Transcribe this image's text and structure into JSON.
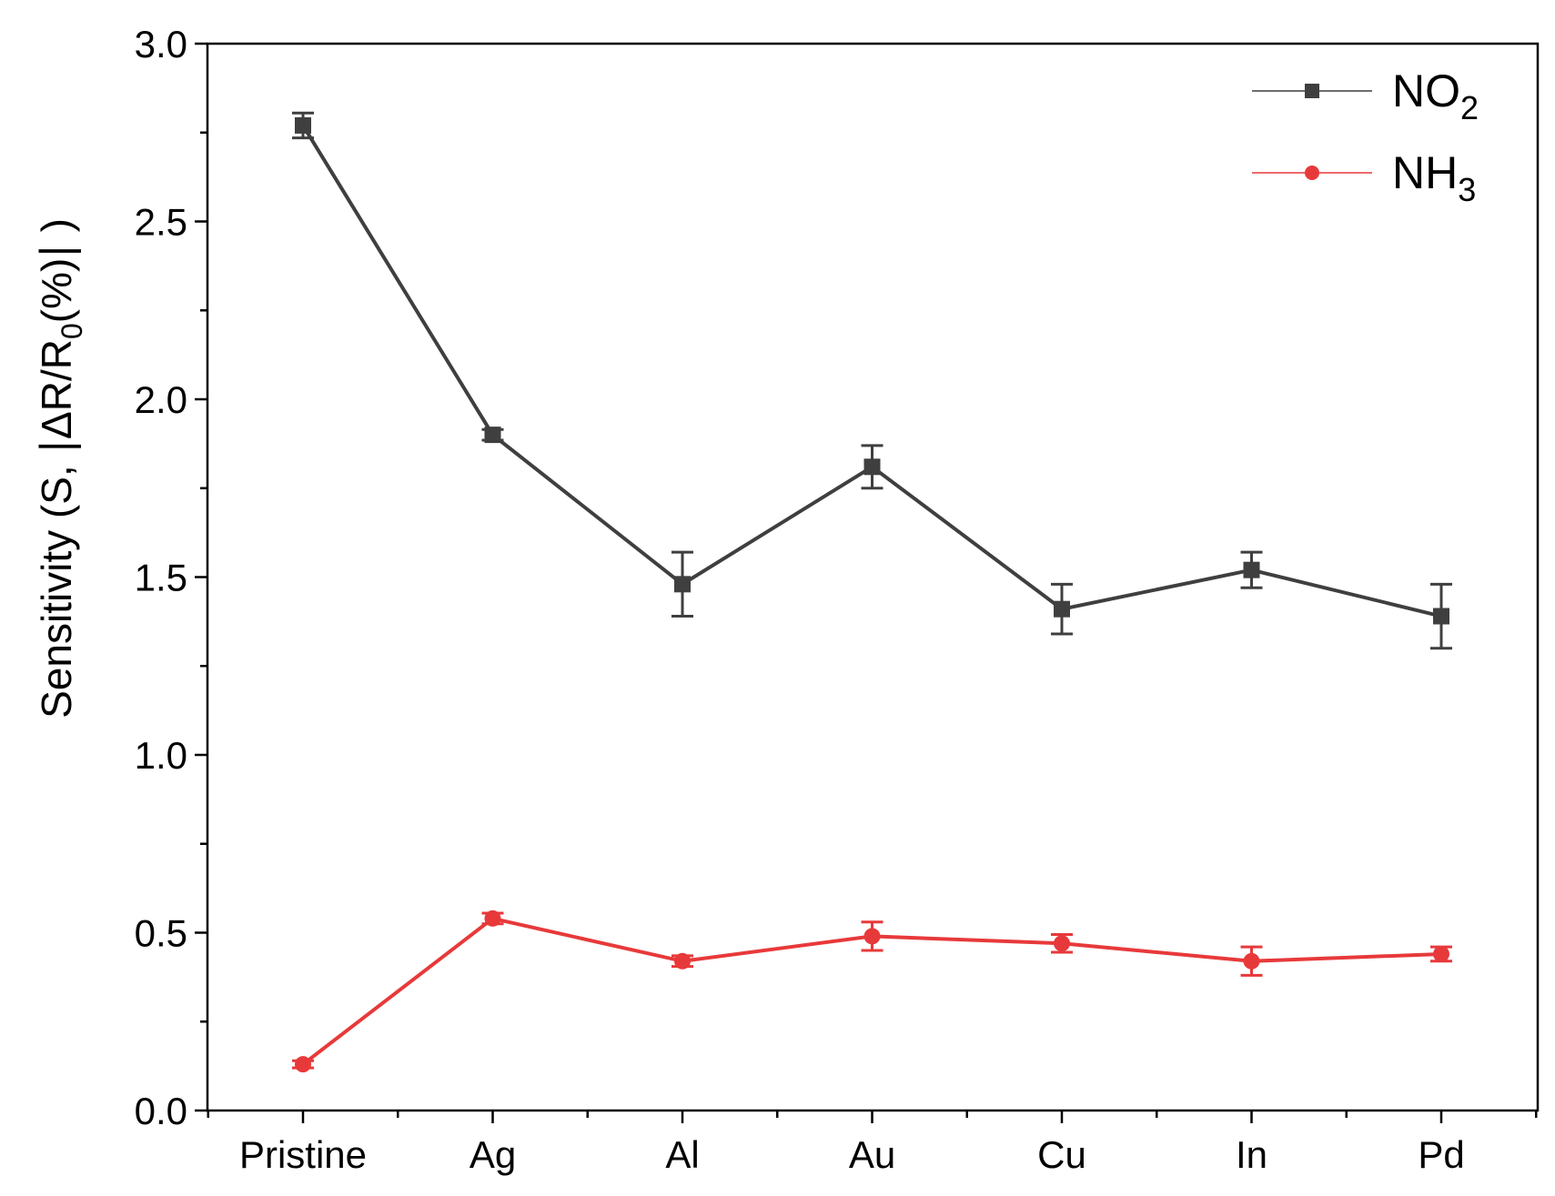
{
  "chart_data": {
    "type": "line",
    "categories": [
      "Pristine",
      "Ag",
      "Al",
      "Au",
      "Cu",
      "In",
      "Pd"
    ],
    "ylabel": {
      "prefix": "Sensitivity (S, ",
      "bar_left": "|",
      "main": "ΔR/R",
      "sub": "0",
      "tail": "(%)",
      "bar_right": "|",
      "suffix": " )"
    },
    "ylim": [
      0,
      3.0
    ],
    "yticks": [
      "0.0",
      "0.5",
      "1.0",
      "1.5",
      "2.0",
      "2.5",
      "3.0"
    ],
    "legend_position": "top-right",
    "series": [
      {
        "name": "NO",
        "name_sub": "2",
        "marker": "square",
        "color": "#3f3f3f",
        "values": [
          2.77,
          1.9,
          1.48,
          1.81,
          1.41,
          1.52,
          1.39
        ],
        "errors": [
          0.035,
          0.015,
          0.09,
          0.06,
          0.07,
          0.05,
          0.09
        ]
      },
      {
        "name": "NH",
        "name_sub": "3",
        "marker": "circle",
        "color": "#e8393a",
        "values": [
          0.13,
          0.54,
          0.42,
          0.49,
          0.47,
          0.42,
          0.44
        ],
        "errors": [
          0.01,
          0.015,
          0.015,
          0.04,
          0.025,
          0.04,
          0.02
        ]
      }
    ]
  }
}
